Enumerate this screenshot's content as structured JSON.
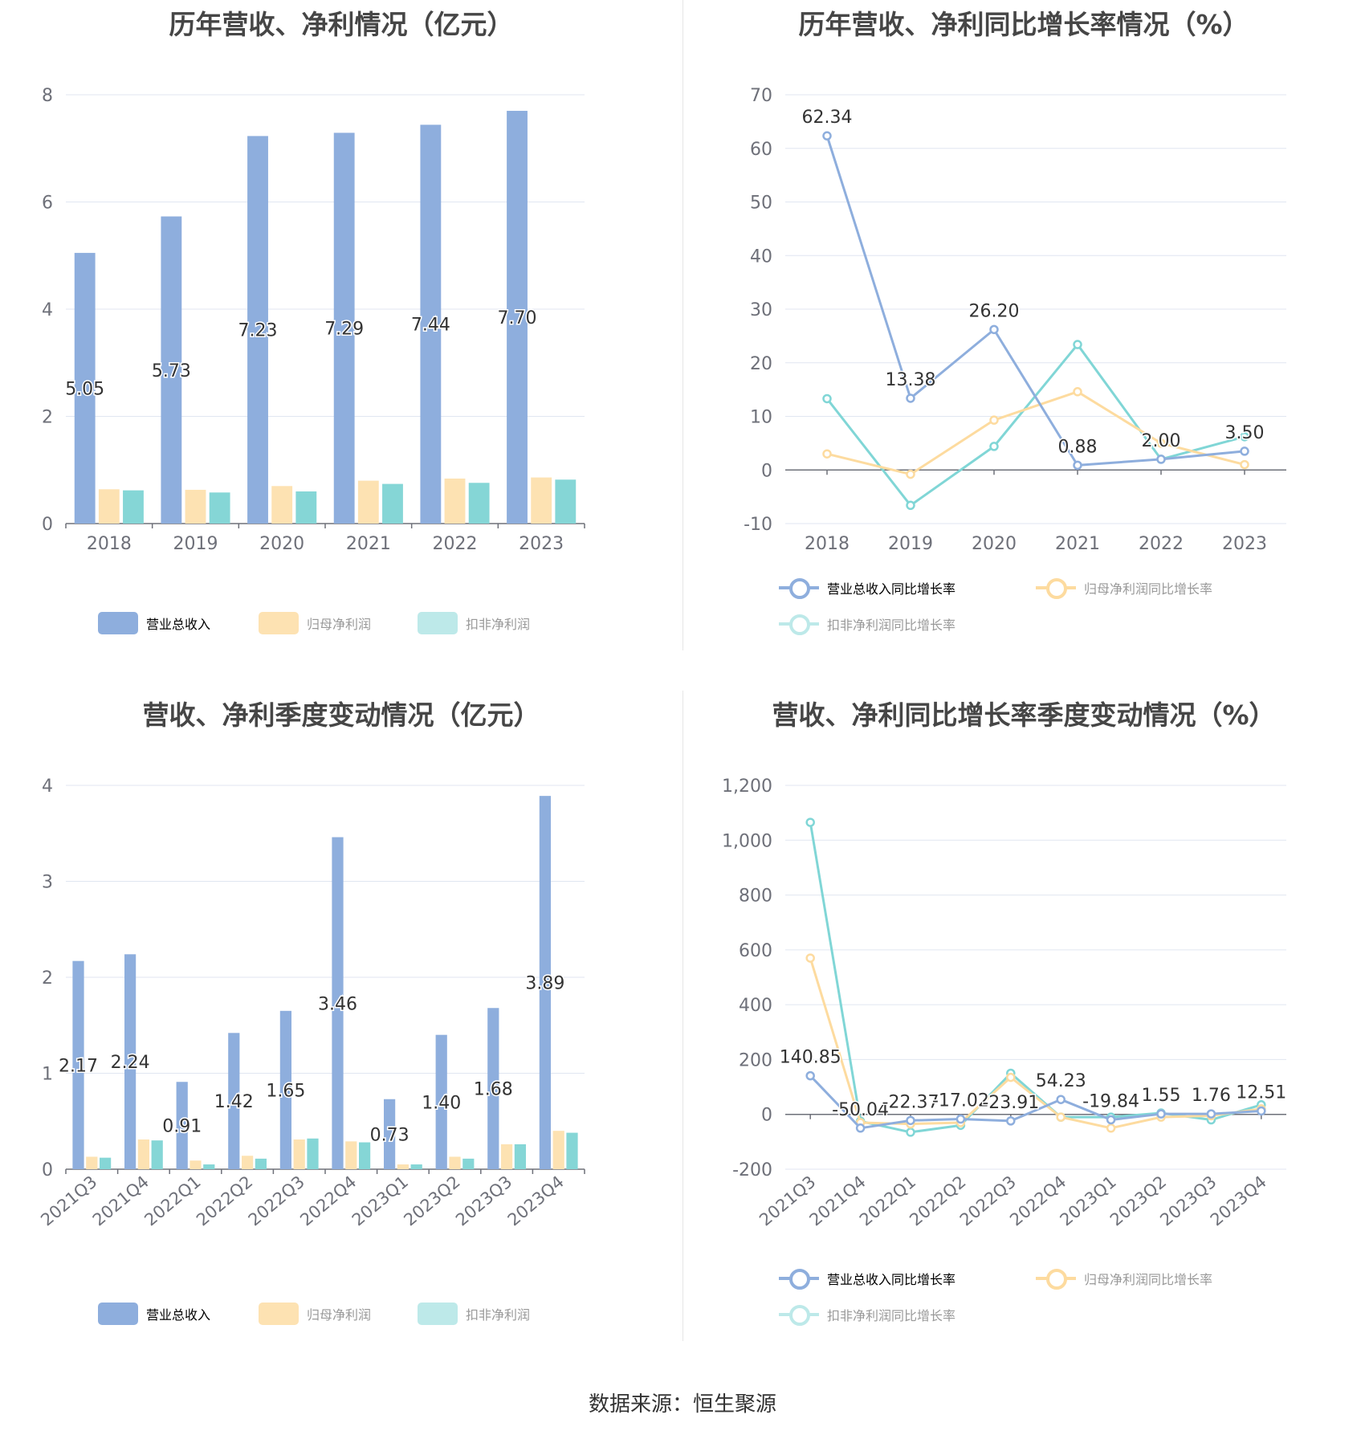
{
  "colors": {
    "revenue": "#8eaedd",
    "net_profit": "#fde2b2",
    "deducted": "#85d6d6",
    "revenue_legend": "#8eaedd",
    "net_profit_legend": "#fde2b2",
    "deducted_legend": "#bde9e9",
    "net_profit_line": "#fddb9f",
    "deducted_line": "#80d6d6",
    "grid": "#e0e6f1",
    "axis_text": "#6e7079",
    "label_text": "#333333"
  },
  "source_text": "数据来源：恒生聚源",
  "chart_data": [
    {
      "id": "annual_bar",
      "type": "bar",
      "title": "历年营收、净利情况（亿元）",
      "categories": [
        "2018",
        "2019",
        "2020",
        "2021",
        "2022",
        "2023"
      ],
      "ylim": [
        0,
        8
      ],
      "yticks": [
        0,
        2,
        4,
        6,
        8
      ],
      "grid": true,
      "legend_position": "bottom",
      "series": [
        {
          "name": "营业总收入",
          "values": [
            5.05,
            5.73,
            7.23,
            7.29,
            7.44,
            7.7
          ],
          "labels": [
            "5.05",
            "5.73",
            "7.23",
            "7.29",
            "7.44",
            "7.70"
          ]
        },
        {
          "name": "归母净利润",
          "values": [
            0.64,
            0.63,
            0.7,
            0.8,
            0.84,
            0.86
          ]
        },
        {
          "name": "扣非净利润",
          "values": [
            0.62,
            0.58,
            0.6,
            0.74,
            0.76,
            0.82
          ]
        }
      ]
    },
    {
      "id": "annual_line",
      "type": "line",
      "title": "历年营收、净利同比增长率情况（%）",
      "categories": [
        "2018",
        "2019",
        "2020",
        "2021",
        "2022",
        "2023"
      ],
      "ylim": [
        -10,
        70
      ],
      "yticks": [
        -10,
        0,
        10,
        20,
        30,
        40,
        50,
        60,
        70
      ],
      "grid": true,
      "legend_position": "bottom",
      "series": [
        {
          "name": "营业总收入同比增长率",
          "values": [
            62.34,
            13.38,
            26.2,
            0.88,
            2.0,
            3.5
          ],
          "labels": [
            "62.34",
            "13.38",
            "26.20",
            "0.88",
            "2.00",
            "3.50"
          ]
        },
        {
          "name": "归母净利润同比增长率",
          "values": [
            3.0,
            -0.8,
            9.3,
            14.6,
            5.0,
            1.0
          ]
        },
        {
          "name": "扣非净利润同比增长率",
          "values": [
            13.3,
            -6.6,
            4.4,
            23.4,
            2.0,
            6.2
          ]
        }
      ]
    },
    {
      "id": "quarter_bar",
      "type": "bar",
      "title": "营收、净利季度变动情况（亿元）",
      "categories": [
        "2021Q3",
        "2021Q4",
        "2022Q1",
        "2022Q2",
        "2022Q3",
        "2022Q4",
        "2023Q1",
        "2023Q2",
        "2023Q3",
        "2023Q4"
      ],
      "ylim": [
        0,
        4
      ],
      "yticks": [
        0,
        1,
        2,
        3,
        4
      ],
      "grid": true,
      "legend_position": "bottom",
      "series": [
        {
          "name": "营业总收入",
          "values": [
            2.17,
            2.24,
            0.91,
            1.42,
            1.65,
            3.46,
            0.73,
            1.4,
            1.68,
            3.89
          ],
          "labels": [
            "2.17",
            "2.24",
            "0.91",
            "1.42",
            "1.65",
            "3.46",
            "0.73",
            "1.40",
            "1.68",
            "3.89"
          ]
        },
        {
          "name": "归母净利润",
          "values": [
            0.13,
            0.31,
            0.09,
            0.14,
            0.31,
            0.29,
            0.05,
            0.13,
            0.26,
            0.4
          ]
        },
        {
          "name": "扣非净利润",
          "values": [
            0.12,
            0.3,
            0.05,
            0.11,
            0.32,
            0.28,
            0.05,
            0.11,
            0.26,
            0.38
          ]
        }
      ]
    },
    {
      "id": "quarter_line",
      "type": "line",
      "title": "营收、净利同比增长率季度变动情况（%）",
      "categories": [
        "2021Q3",
        "2021Q4",
        "2022Q1",
        "2022Q2",
        "2022Q3",
        "2022Q4",
        "2023Q1",
        "2023Q2",
        "2023Q3",
        "2023Q4"
      ],
      "ylim": [
        -200,
        1200
      ],
      "yticks": [
        -200,
        0,
        200,
        400,
        600,
        800,
        1000,
        1200
      ],
      "ytick_labels": [
        "-200",
        "0",
        "200",
        "400",
        "600",
        "800",
        "1,000",
        "1,200"
      ],
      "grid": true,
      "legend_position": "bottom",
      "series": [
        {
          "name": "营业总收入同比增长率",
          "values": [
            140.85,
            -50.04,
            -22.37,
            -17.02,
            -23.91,
            54.23,
            -19.84,
            1.55,
            1.76,
            12.51
          ],
          "labels": [
            "140.85",
            "-50.04",
            "-22.37",
            "-17.02",
            "-23.91",
            "54.23",
            "-19.84",
            "1.55",
            "1.76",
            "12.51"
          ]
        },
        {
          "name": "归母净利润同比增长率",
          "values": [
            570,
            -30,
            -35,
            -30,
            135,
            -10,
            -50,
            -10,
            -5,
            20
          ]
        },
        {
          "name": "扣非净利润同比增长率",
          "values": [
            1065,
            -25,
            -65,
            -40,
            150,
            -10,
            -10,
            5,
            -20,
            35
          ]
        }
      ]
    }
  ]
}
